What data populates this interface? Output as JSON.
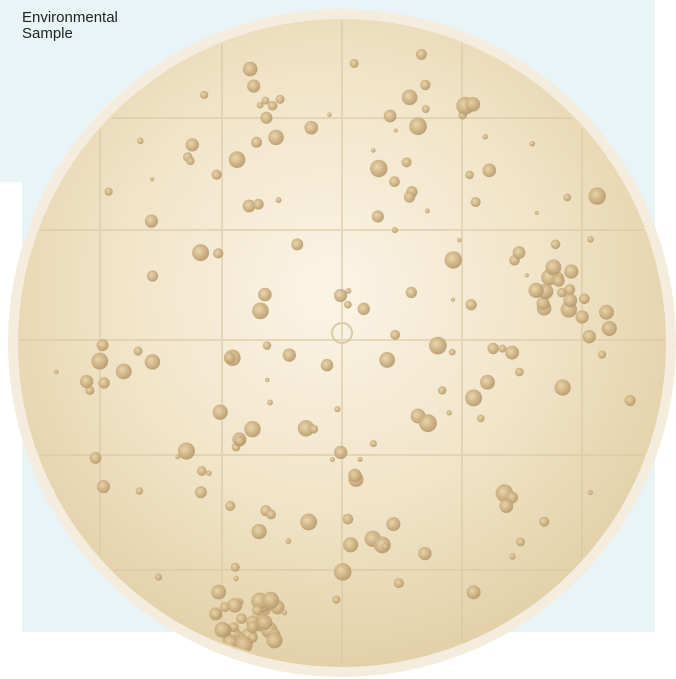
{
  "label": "Environmental Sample"
}
